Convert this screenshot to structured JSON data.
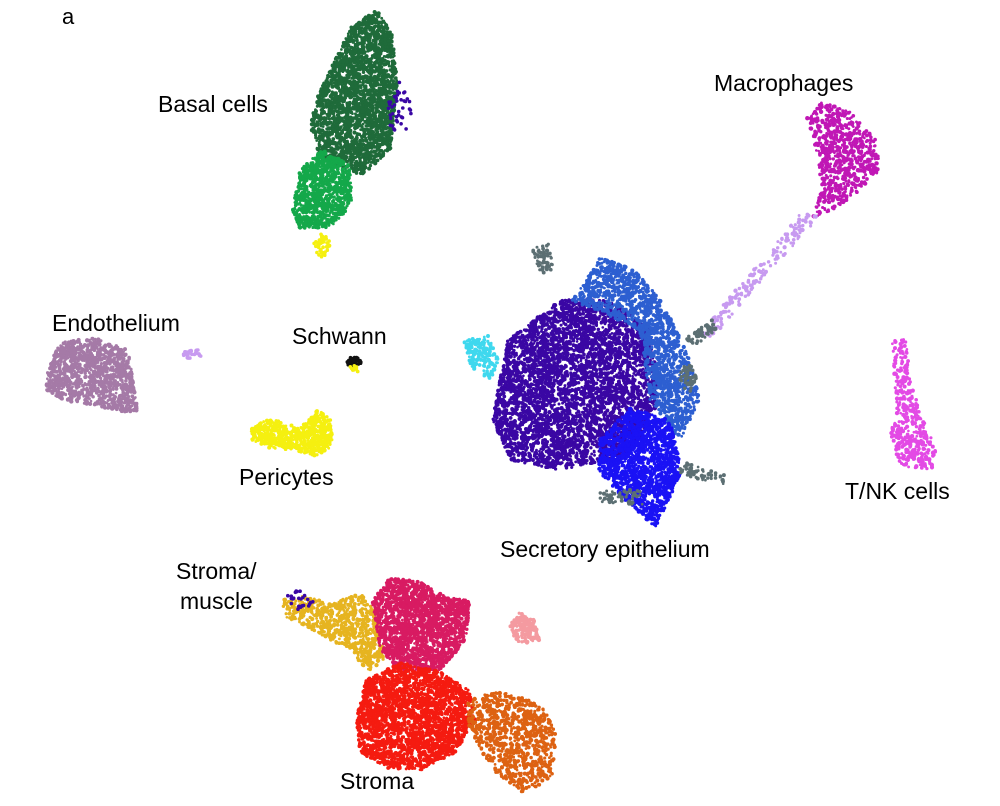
{
  "panel_letter": "a",
  "clusters": [
    {
      "key": "basal-dark",
      "color": "#1f6b3a"
    },
    {
      "key": "basal-light",
      "color": "#14a84a"
    },
    {
      "key": "macrophages",
      "color": "#c017b5"
    },
    {
      "key": "macrophage-trail",
      "color": "#c79af0"
    },
    {
      "key": "endothelium",
      "color": "#a57aa7"
    },
    {
      "key": "schwann",
      "color": "#111111"
    },
    {
      "key": "pericytes",
      "color": "#f5f010"
    },
    {
      "key": "secretory-main",
      "color": "#3a07a4"
    },
    {
      "key": "secretory-blue",
      "color": "#2d5fd1"
    },
    {
      "key": "secretory-bright",
      "color": "#1a12f5"
    },
    {
      "key": "secretory-cyan",
      "color": "#3fd8ee"
    },
    {
      "key": "secretory-grey",
      "color": "#5c6f73"
    },
    {
      "key": "tnk",
      "color": "#e34ae5"
    },
    {
      "key": "stroma-red",
      "color": "#f51b10"
    },
    {
      "key": "stroma-crimson",
      "color": "#d81b62"
    },
    {
      "key": "stroma-orange",
      "color": "#dd6212"
    },
    {
      "key": "stroma-muscle",
      "color": "#e6b420"
    },
    {
      "key": "stroma-pink",
      "color": "#f49aa0"
    }
  ],
  "labels": {
    "basal": "Basal cells",
    "macrophages": "Macrophages",
    "endothelium": "Endothelium",
    "schwann": "Schwann",
    "pericytes": "Pericytes",
    "secretory": "Secretory epithelium",
    "tnk": "T/NK cells",
    "stroma_muscle_1": "Stroma/",
    "stroma_muscle_2": "muscle",
    "stroma": "Stroma"
  }
}
